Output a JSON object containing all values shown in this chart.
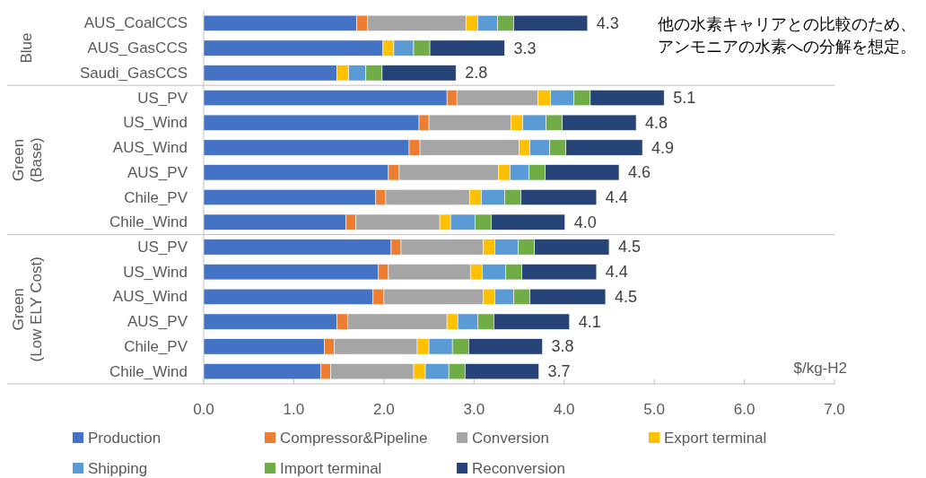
{
  "chart_data": {
    "type": "bar",
    "orientation": "horizontal",
    "stacked": true,
    "categories": [
      "AUS_CoalCCS",
      "AUS_GasCCS",
      "Saudi_GasCCS",
      "US_PV",
      "US_Wind",
      "AUS_Wind",
      "AUS_PV",
      "Chile_PV",
      "Chile_Wind",
      "US_PV",
      "US_Wind",
      "AUS_Wind",
      "AUS_PV",
      "Chile_PV",
      "Chile_Wind"
    ],
    "series": [
      {
        "name": "Production",
        "color": "#4472c4",
        "values": [
          1.7,
          1.99,
          1.48,
          2.7,
          2.39,
          2.28,
          2.05,
          1.91,
          1.58,
          2.08,
          1.94,
          1.88,
          1.48,
          1.34,
          1.3
        ]
      },
      {
        "name": "Compressor&Pipeline",
        "color": "#ed7d31",
        "values": [
          0.12,
          null,
          null,
          0.11,
          0.11,
          0.12,
          0.12,
          0.11,
          0.11,
          0.11,
          0.11,
          0.12,
          0.12,
          0.11,
          0.11
        ]
      },
      {
        "name": "Conversion",
        "color": "#a5a5a5",
        "values": [
          1.09,
          null,
          null,
          0.9,
          0.91,
          1.1,
          1.1,
          0.93,
          0.93,
          0.91,
          0.91,
          1.1,
          1.1,
          0.92,
          0.92
        ]
      },
      {
        "name": "Export terminal",
        "color": "#ffc000",
        "values": [
          0.13,
          0.12,
          0.13,
          0.14,
          0.13,
          0.12,
          0.13,
          0.13,
          0.12,
          0.13,
          0.13,
          0.13,
          0.12,
          0.13,
          0.13
        ]
      },
      {
        "name": "Shipping",
        "color": "#5b9bd5",
        "values": [
          0.22,
          0.22,
          0.19,
          0.26,
          0.26,
          0.22,
          0.21,
          0.26,
          0.27,
          0.26,
          0.26,
          0.21,
          0.22,
          0.26,
          0.26
        ]
      },
      {
        "name": "Import terminal",
        "color": "#70ad47",
        "values": [
          0.18,
          0.18,
          0.18,
          0.18,
          0.18,
          0.18,
          0.18,
          0.18,
          0.18,
          0.18,
          0.18,
          0.18,
          0.18,
          0.18,
          0.18
        ]
      },
      {
        "name": "Reconversion",
        "color": "#264478",
        "values": [
          0.82,
          0.83,
          0.82,
          0.82,
          0.82,
          0.85,
          0.82,
          0.84,
          0.82,
          0.83,
          0.83,
          0.84,
          0.84,
          0.82,
          0.82
        ]
      }
    ],
    "totals": [
      "4.3",
      "3.3",
      "2.8",
      "5.1",
      "4.8",
      "4.9",
      "4.6",
      "4.4",
      "4.0",
      "4.5",
      "4.4",
      "4.5",
      "4.1",
      "3.8",
      "3.7"
    ],
    "xlim": [
      0,
      7
    ],
    "xticks": [
      {
        "value": 0,
        "label": "0.0"
      },
      {
        "value": 1,
        "label": "1.0"
      },
      {
        "value": 2,
        "label": "2.0"
      },
      {
        "value": 3,
        "label": "3.0"
      },
      {
        "value": 4,
        "label": "4.0"
      },
      {
        "value": 5,
        "label": "5.0"
      },
      {
        "value": 6,
        "label": "6.0"
      },
      {
        "value": 7,
        "label": "7.0"
      }
    ],
    "xlabel": "$/kg-H2",
    "annotations": [
      "Blue",
      "Green\n(Base)",
      "Green\n(Low ELY Cost)",
      "他の水素キャリアとの比較のため、アンモニアの水素への分解を想定。"
    ],
    "legend": "bottom"
  }
}
